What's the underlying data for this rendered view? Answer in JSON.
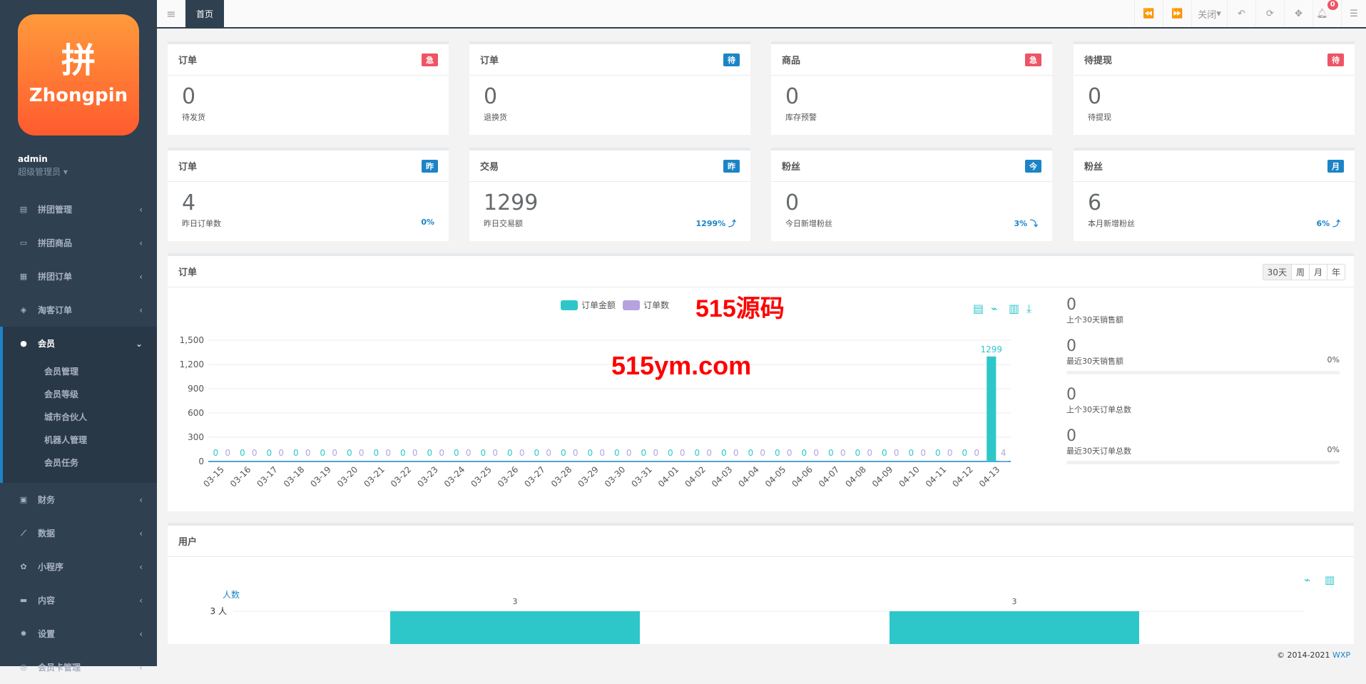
{
  "sidebar": {
    "logo_text": "Zhongpin",
    "logo_char": "拼",
    "user": "admin",
    "role": "超级管理员",
    "items": [
      {
        "label": "拼团管理",
        "icon": "server-icon"
      },
      {
        "label": "拼团商品",
        "icon": "laptop-icon"
      },
      {
        "label": "拼团订单",
        "icon": "list-icon"
      },
      {
        "label": "淘客订单",
        "icon": "cube-icon"
      },
      {
        "label": "会员",
        "icon": "user-icon"
      },
      {
        "label": "财务",
        "icon": "money-icon"
      },
      {
        "label": "数据",
        "icon": "chart-icon"
      },
      {
        "label": "小程序",
        "icon": "cubes-icon"
      },
      {
        "label": "内容",
        "icon": "book-icon"
      },
      {
        "label": "设置",
        "icon": "gear-icon"
      },
      {
        "label": "会员卡管理",
        "icon": "card-icon"
      }
    ],
    "sub_items": [
      "会员管理",
      "会员等级",
      "城市合伙人",
      "机器人管理",
      "会员任务"
    ]
  },
  "topbar": {
    "home_tab": "首页",
    "close_label": "关闭",
    "notif_count": "0"
  },
  "cards": [
    {
      "title": "订单",
      "tag": "急",
      "tag_color": "#ed5565",
      "value": "0",
      "label": "待发货",
      "pct": ""
    },
    {
      "title": "订单",
      "tag": "待",
      "tag_color": "#1c84c6",
      "value": "0",
      "label": "退换货",
      "pct": ""
    },
    {
      "title": "商品",
      "tag": "急",
      "tag_color": "#ed5565",
      "value": "0",
      "label": "库存预警",
      "pct": ""
    },
    {
      "title": "待提现",
      "tag": "待",
      "tag_color": "#ed5565",
      "value": "0",
      "label": "待提现",
      "pct": ""
    },
    {
      "title": "订单",
      "tag": "昨",
      "tag_color": "#1c84c6",
      "value": "4",
      "label": "昨日订单数",
      "pct": "0%"
    },
    {
      "title": "交易",
      "tag": "昨",
      "tag_color": "#1c84c6",
      "value": "1299",
      "label": "昨日交易额",
      "pct": "1299% ⤴"
    },
    {
      "title": "粉丝",
      "tag": "今",
      "tag_color": "#1c84c6",
      "value": "0",
      "label": "今日新增粉丝",
      "pct": "3% ⤵"
    },
    {
      "title": "粉丝",
      "tag": "月",
      "tag_color": "#1c84c6",
      "value": "6",
      "label": "本月新增粉丝",
      "pct": "6% ⤴"
    }
  ],
  "orders_panel": {
    "title": "订单",
    "ranges": [
      "30天",
      "周",
      "月",
      "年"
    ],
    "stats": [
      {
        "value": "0",
        "label": "上个30天销售额",
        "pct": ""
      },
      {
        "value": "0",
        "label": "最近30天销售额",
        "pct": "0%"
      },
      {
        "value": "0",
        "label": "上个30天订单总数",
        "pct": ""
      },
      {
        "value": "0",
        "label": "最近30天订单总数",
        "pct": "0%"
      }
    ]
  },
  "users_panel": {
    "title": "用户"
  },
  "watermark": {
    "line1": "515源码",
    "line2": "515ym.com"
  },
  "footer": {
    "copyright": "© 2014-2021",
    "link": "WXP"
  },
  "chart_data": [
    {
      "type": "bar",
      "legend": [
        "订单金额",
        "订单数"
      ],
      "colors": [
        "#2ec7c9",
        "#b6a2de"
      ],
      "ylim": [
        0,
        1500
      ],
      "yticks": [
        0,
        300,
        600,
        900,
        1200,
        1500
      ],
      "grid": true,
      "legend_placement": "top",
      "categories": [
        "03-15",
        "03-16",
        "03-17",
        "03-18",
        "03-19",
        "03-20",
        "03-21",
        "03-22",
        "03-23",
        "03-24",
        "03-25",
        "03-26",
        "03-27",
        "03-28",
        "03-29",
        "03-30",
        "03-31",
        "04-01",
        "04-02",
        "04-03",
        "04-04",
        "04-05",
        "04-06",
        "04-07",
        "04-08",
        "04-09",
        "04-10",
        "04-11",
        "04-12",
        "04-13"
      ],
      "series": [
        {
          "name": "订单金额",
          "values": [
            0,
            0,
            0,
            0,
            0,
            0,
            0,
            0,
            0,
            0,
            0,
            0,
            0,
            0,
            0,
            0,
            0,
            0,
            0,
            0,
            0,
            0,
            0,
            0,
            0,
            0,
            0,
            0,
            0,
            1299
          ]
        },
        {
          "name": "订单数",
          "values": [
            0,
            0,
            0,
            0,
            0,
            0,
            0,
            0,
            0,
            0,
            0,
            0,
            0,
            0,
            0,
            0,
            0,
            0,
            0,
            0,
            0,
            0,
            0,
            0,
            0,
            0,
            0,
            0,
            0,
            4
          ]
        }
      ]
    },
    {
      "type": "bar",
      "ylabel": "人数",
      "ytick_label": "3 人",
      "values": [
        3,
        3
      ],
      "color": "#2ec7c9"
    }
  ]
}
